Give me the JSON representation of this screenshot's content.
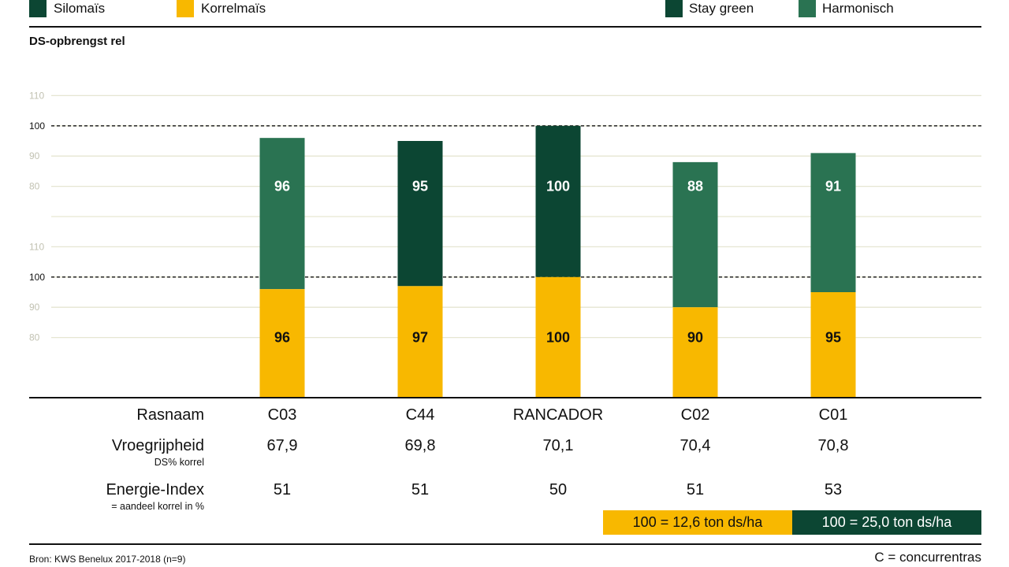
{
  "legend": {
    "left": [
      {
        "label": "Silomaïs",
        "color": "#0c4633"
      },
      {
        "label": "Korrelmaïs",
        "color": "#f8b800"
      }
    ],
    "right": [
      {
        "label": "Stay green",
        "color": "#0c4633"
      },
      {
        "label": "Harmonisch",
        "color": "#2a7352"
      }
    ]
  },
  "colors": {
    "stay_green": "#0c4633",
    "harmonisch": "#2a7352",
    "korrelmais": "#f8b800",
    "grid": "#e6e6d2",
    "tick_faint": "#c2c2b2"
  },
  "chart_data": {
    "type": "bar",
    "ylabel": "DS-opbrengst rel",
    "ylim": [
      70,
      110
    ],
    "yticks": [
      "110",
      "100",
      "90",
      "80"
    ],
    "reference_line": 100,
    "categories": [
      "C03",
      "C44",
      "RANCADOR",
      "C02",
      "C01"
    ],
    "panels": [
      {
        "name": "Silomaïs",
        "values": [
          96,
          95,
          100,
          88,
          91
        ],
        "types": [
          "Harmonisch",
          "Stay green",
          "Stay green",
          "Harmonisch",
          "Harmonisch"
        ]
      },
      {
        "name": "Korrelmaïs",
        "values": [
          96,
          97,
          100,
          90,
          95
        ]
      }
    ]
  },
  "table": {
    "rows": [
      {
        "label": "Rasnaam",
        "sub": "",
        "values": [
          "C03",
          "C44",
          "RANCADOR",
          "C02",
          "C01"
        ]
      },
      {
        "label": "Vroegrijpheid",
        "sub": "DS% korrel",
        "values": [
          "67,9",
          "69,8",
          "70,1",
          "70,4",
          "70,8"
        ]
      },
      {
        "label": "Energie-Index",
        "sub": "= aandeel korrel in %",
        "values": [
          "51",
          "51",
          "50",
          "51",
          "53"
        ]
      }
    ]
  },
  "scale": {
    "korrel": "100 = 12,6 ton ds/ha",
    "silo": "100 = 25,0 ton ds/ha"
  },
  "footer": {
    "source": "Bron: KWS Benelux 2017-2018 (n=9)",
    "note": "C = concurrentras"
  }
}
